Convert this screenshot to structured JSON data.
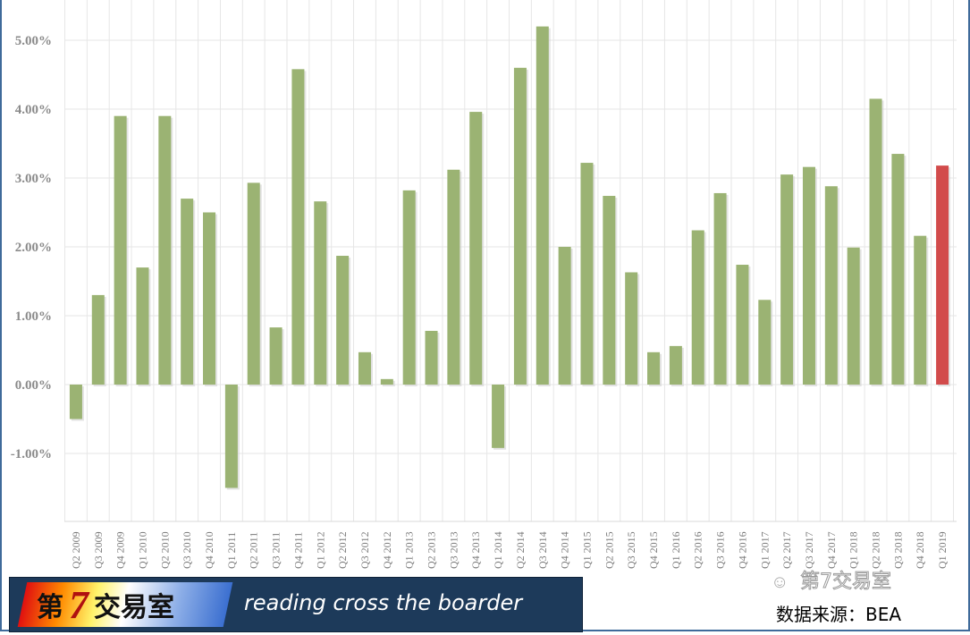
{
  "chart_data": {
    "type": "bar",
    "categories": [
      "Q2 2009",
      "Q3 2009",
      "Q4 2009",
      "Q1 2010",
      "Q2 2010",
      "Q3 2010",
      "Q4 2010",
      "Q1 2011",
      "Q2 2011",
      "Q3 2011",
      "Q4 2011",
      "Q1 2012",
      "Q2 2012",
      "Q3 2012",
      "Q4 2012",
      "Q1 2013",
      "Q2 2013",
      "Q3 2013",
      "Q4 2013",
      "Q1 2014",
      "Q2 2014",
      "Q3 2014",
      "Q4 2014",
      "Q1 2015",
      "Q2 2015",
      "Q3 2015",
      "Q4 2015",
      "Q1 2016",
      "Q2 2016",
      "Q3 2016",
      "Q4 2016",
      "Q1 2017",
      "Q2 2017",
      "Q3 2017",
      "Q4 2017",
      "Q1 2018",
      "Q2 2018",
      "Q3 2018",
      "Q4 2018",
      "Q1 2019"
    ],
    "values": [
      -0.5,
      1.3,
      3.9,
      1.7,
      3.9,
      2.7,
      2.5,
      -1.5,
      2.93,
      0.83,
      4.58,
      2.66,
      1.87,
      0.47,
      0.08,
      2.82,
      0.78,
      3.12,
      3.96,
      -0.92,
      4.6,
      5.2,
      2.0,
      3.22,
      2.74,
      1.63,
      0.47,
      0.56,
      2.24,
      2.78,
      1.74,
      1.23,
      3.05,
      3.16,
      2.88,
      1.99,
      4.15,
      3.35,
      2.16,
      3.18
    ],
    "yticks": [
      "-1.00%",
      "0.00%",
      "1.00%",
      "2.00%",
      "3.00%",
      "4.00%",
      "5.00%"
    ],
    "ylim": [
      -2,
      5.6
    ],
    "grid": true,
    "colors": {
      "bar": "#9bb373",
      "highlight": "#d24b4b"
    },
    "highlight_index": 39
  },
  "watermark": {
    "logo_cn": "第7交易室",
    "logo_en": "reading cross the boarder",
    "wechat": "第7交易室"
  },
  "source": "数据来源：BEA"
}
